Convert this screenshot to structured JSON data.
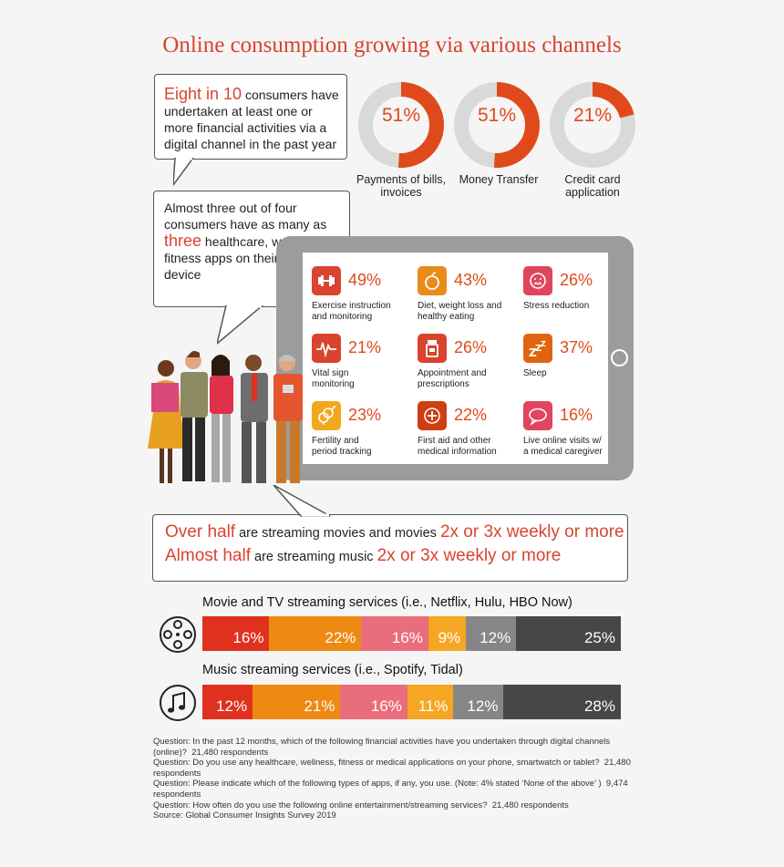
{
  "title": "Online consumption growing via various channels",
  "bubble1": {
    "highlight": "Eight in 10",
    "text": " consumers have undertaken at least one or more financial activities via a digital channel in the past year"
  },
  "bubble2": {
    "text_before": "Almost three out of four consumers have as many as",
    "highlight": "three",
    "text_after": " healthcare, wellness or fitness apps on their smart device"
  },
  "financial": [
    {
      "pct_label": "51%",
      "value": 51,
      "label": "Payments of bills, invoices"
    },
    {
      "pct_label": "51%",
      "value": 51,
      "label": "Money Transfer"
    },
    {
      "pct_label": "21%",
      "value": 21,
      "label": "Credit card application"
    }
  ],
  "apps": [
    {
      "pct": "49%",
      "label": "Exercise instruction\nand monitoring",
      "icon": "dumbbell-icon",
      "color": "#d9432f"
    },
    {
      "pct": "43%",
      "label": "Diet, weight loss and\nhealthy eating",
      "icon": "apple-icon",
      "color": "#ea8a1a"
    },
    {
      "pct": "26%",
      "label": "Stress reduction",
      "icon": "stress-face-icon",
      "color": "#e0455e"
    },
    {
      "pct": "21%",
      "label": "Vital sign\nmonitoring",
      "icon": "heartbeat-icon",
      "color": "#d9432f"
    },
    {
      "pct": "26%",
      "label": "Appointment and\nprescriptions",
      "icon": "pill-bottle-icon",
      "color": "#d9432f"
    },
    {
      "pct": "37%",
      "label": "Sleep",
      "icon": "sleep-zzz-icon",
      "color": "#e06410"
    },
    {
      "pct": "23%",
      "label": "Fertility and\nperiod tracking",
      "icon": "gender-symbols-icon",
      "color": "#f2a81d"
    },
    {
      "pct": "22%",
      "label": "First aid and other\nmedical information",
      "icon": "first-aid-icon",
      "color": "#cf3d12"
    },
    {
      "pct": "16%",
      "label": "Live online visits w/\na medical caregiver",
      "icon": "chat-bubble-icon",
      "color": "#e0455e"
    }
  ],
  "streaming_text": {
    "line1_a": "Over half",
    "line1_b": " are streaming movies and movies ",
    "line1_c": "2x or 3x weekly or more",
    "line2_a": "Almost half",
    "line2_b": " are streaming music ",
    "line2_c": "2x or 3x weekly or more"
  },
  "chart_data": [
    {
      "type": "bar",
      "title": "Movie and TV streaming services (i.e., Netflix, Hulu, HBO Now)",
      "series": [
        {
          "value": 16,
          "label": "16%",
          "color": "#e0301e"
        },
        {
          "value": 22,
          "label": "22%",
          "color": "#ee8a12"
        },
        {
          "value": 16,
          "label": "16%",
          "color": "#ea6d7b"
        },
        {
          "value": 9,
          "label": "9%",
          "color": "#f6a623"
        },
        {
          "value": 12,
          "label": "12%",
          "color": "#868686"
        },
        {
          "value": 25,
          "label": "25%",
          "color": "#474747"
        }
      ]
    },
    {
      "type": "bar",
      "title": "Music streaming services (i.e., Spotify, Tidal)",
      "series": [
        {
          "value": 12,
          "label": "12%",
          "color": "#e0301e"
        },
        {
          "value": 21,
          "label": "21%",
          "color": "#ee8a12"
        },
        {
          "value": 16,
          "label": "16%",
          "color": "#ea6d7b"
        },
        {
          "value": 11,
          "label": "11%",
          "color": "#f6a623"
        },
        {
          "value": 12,
          "label": "12%",
          "color": "#868686"
        },
        {
          "value": 28,
          "label": "28%",
          "color": "#474747"
        }
      ]
    }
  ],
  "footnotes": [
    "Question: In the past 12 months, which of the following financial activities have you undertaken through digital channels (online)?  21,480 respondents",
    "Question: Do you use any healthcare, wellness, fitness or medical applications on your phone, smartwatch or tablet?  21,480 respondents",
    "Question: Please indicate which of the following types of apps, if any, you use. (Note: 4% stated ‘None of the above’ )  9,474 respondents",
    "Question: How often do you use the following online entertainment/streaming services?  21,480 respondents",
    "Source: Global Consumer Insights Survey 2019"
  ],
  "colors": {
    "accent": "#d9432f",
    "donut_fill": "#e04a1b",
    "donut_track": "#d9d9d9"
  }
}
